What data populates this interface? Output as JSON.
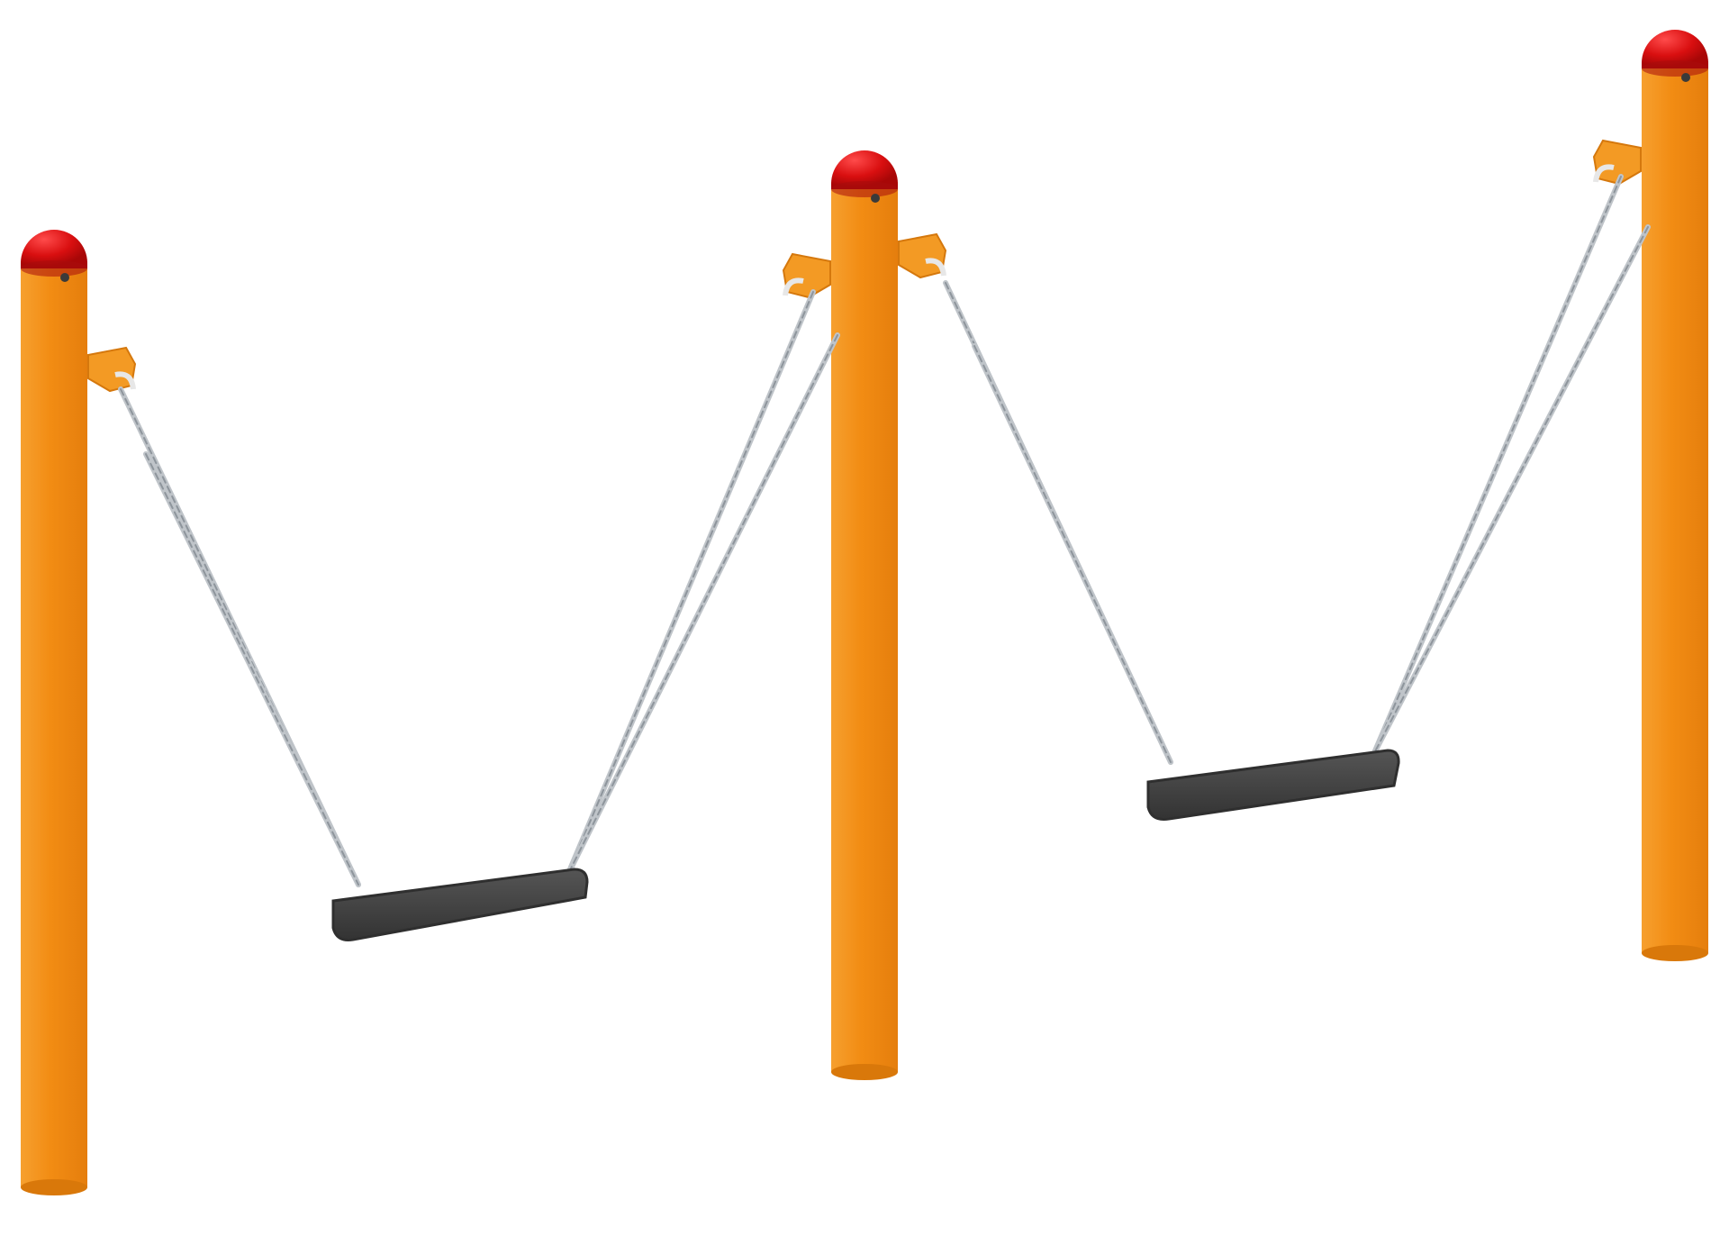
{
  "scene": {
    "subject": "swing-set-illustration",
    "posts": [
      {
        "id": "post-left"
      },
      {
        "id": "post-middle"
      },
      {
        "id": "post-right"
      }
    ],
    "seats": [
      {
        "id": "seat-left"
      },
      {
        "id": "seat-right"
      }
    ]
  },
  "colors": {
    "background": "#ffffff",
    "post": "#f28c13",
    "post_shadow": "#d9780a",
    "post_highlight": "#f8a93b",
    "cap": "#d90f10",
    "cap_highlight": "#ff4747",
    "bracket": "#f39a24",
    "chain": "#bfc4c9",
    "chain_dark": "#8e959c",
    "seat": "#4a4a4a",
    "seat_dark": "#2f2f2f"
  },
  "icons": {
    "post": "post-icon",
    "cap": "cap-icon",
    "seat": "seat-icon",
    "chain": "chain-icon",
    "bracket": "bracket-icon"
  }
}
